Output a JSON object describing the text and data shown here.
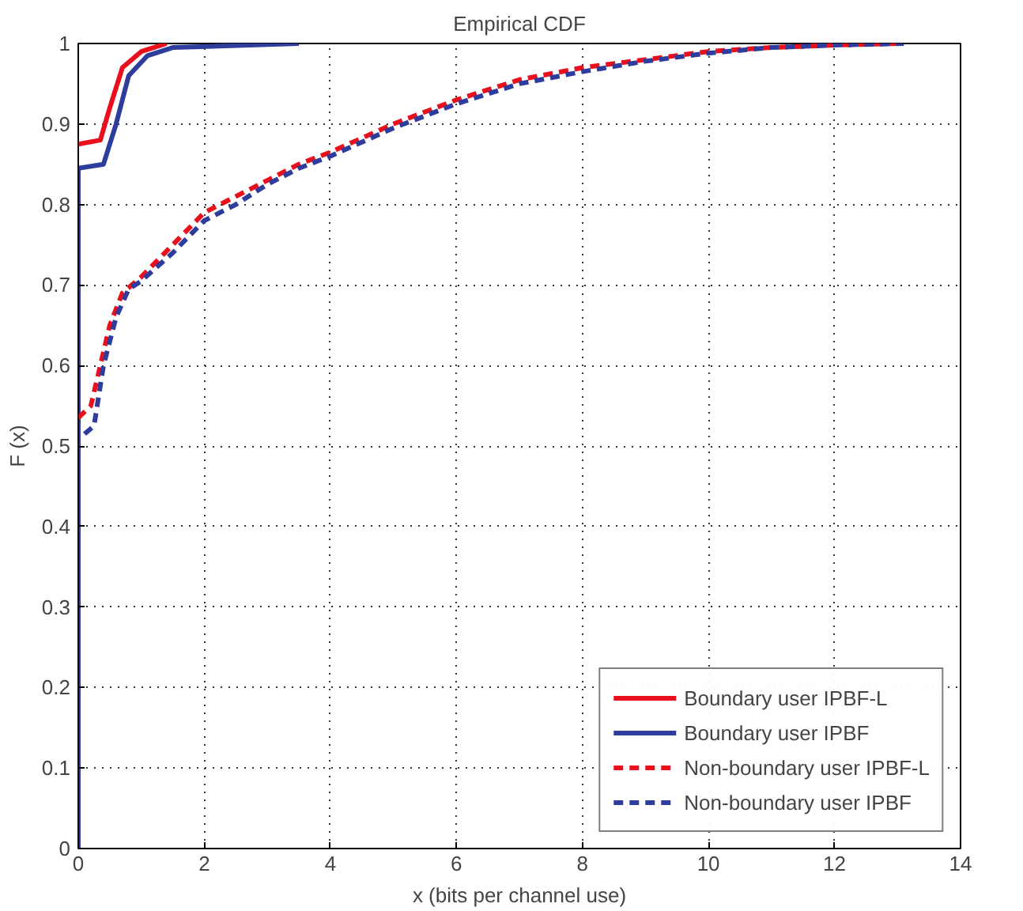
{
  "chart_data": {
    "type": "line",
    "title": "Empirical CDF",
    "xlabel": "x (bits per channel use)",
    "ylabel": "F (x)",
    "xlim": [
      0,
      14
    ],
    "ylim": [
      0,
      1
    ],
    "xticks": [
      0,
      2,
      4,
      6,
      8,
      10,
      12,
      14
    ],
    "yticks": [
      0,
      0.1,
      0.2,
      0.3,
      0.4,
      0.5,
      0.6,
      0.7,
      0.8,
      0.9,
      1
    ],
    "grid": true,
    "legend": "bottom right",
    "marker": "none",
    "series": [
      {
        "name": "Boundary user IPBF-L",
        "color": "#e8101c",
        "line_style": "solid",
        "x": [
          0,
          0.35,
          0.5,
          0.7,
          1.0,
          1.4
        ],
        "values": [
          0.875,
          0.88,
          0.92,
          0.97,
          0.99,
          1.0
        ]
      },
      {
        "name": "Boundary user IPBF",
        "color": "#2e3c9c",
        "line_style": "solid",
        "x": [
          0,
          0,
          0.4,
          0.6,
          0.8,
          1.1,
          1.5,
          3.5
        ],
        "values": [
          0,
          0.845,
          0.85,
          0.9,
          0.96,
          0.985,
          0.995,
          1.0
        ]
      },
      {
        "name": "Non-boundary user IPBF-L",
        "color": "#e8101c",
        "line_style": "dashed",
        "x": [
          0,
          0.2,
          0.35,
          0.5,
          0.7,
          1,
          1.5,
          2,
          2.5,
          3,
          3.5,
          4,
          5,
          6,
          7,
          8,
          9,
          10,
          11,
          12,
          13
        ],
        "values": [
          0.535,
          0.55,
          0.6,
          0.65,
          0.69,
          0.71,
          0.75,
          0.79,
          0.81,
          0.83,
          0.85,
          0.865,
          0.9,
          0.93,
          0.955,
          0.97,
          0.98,
          0.99,
          0.995,
          0.998,
          1.0
        ]
      },
      {
        "name": "Non-boundary user IPBF",
        "color": "#2e3c9c",
        "line_style": "dashed",
        "x": [
          0.1,
          0.25,
          0.4,
          0.6,
          0.8,
          1,
          1.5,
          2,
          2.5,
          3,
          3.5,
          4,
          5,
          6,
          7,
          8,
          9,
          10,
          11,
          12,
          13.1
        ],
        "values": [
          0.515,
          0.525,
          0.6,
          0.66,
          0.695,
          0.705,
          0.74,
          0.78,
          0.8,
          0.825,
          0.845,
          0.86,
          0.895,
          0.925,
          0.95,
          0.965,
          0.978,
          0.988,
          0.995,
          0.998,
          1.0
        ]
      }
    ]
  }
}
